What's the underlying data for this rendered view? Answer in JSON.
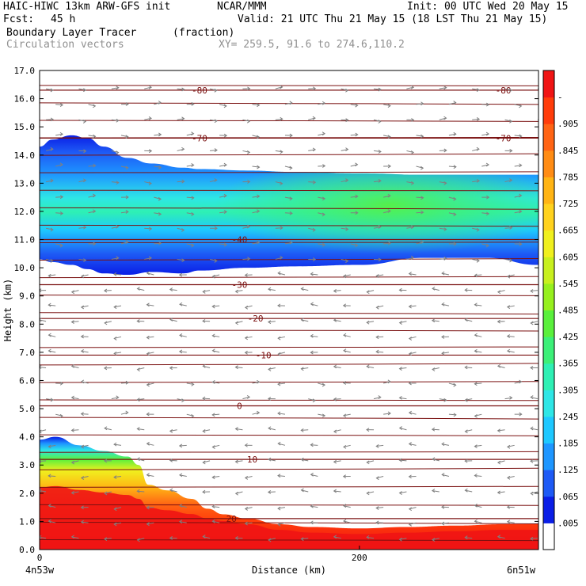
{
  "header": {
    "model": "HAIC-HIWC 13km ARW-GFS init",
    "center": "NCAR/MMM",
    "init": "Init: 00 UTC Wed 20 May 15",
    "fcst_label": "Fcst:",
    "fcst_value": "45 h",
    "valid": "Valid: 21 UTC Thu 21 May 15 (18 LST Thu 21 May 15)",
    "field": "Boundary Layer Tracer",
    "units": "(fraction)",
    "vectors": "Circulation vectors",
    "xsection": "XY= 259.5, 91.6 to 274.6,110.2"
  },
  "chart_data": {
    "type": "heatmap",
    "title": "Boundary Layer Tracer",
    "units": "(fraction)",
    "xlabel": "Distance (km)",
    "ylabel": "Height (km)",
    "xlim": [
      0,
      312
    ],
    "ylim": [
      0,
      17
    ],
    "x_ticks": [
      0,
      200
    ],
    "x_end_labels": [
      "4n53w",
      "6n51w"
    ],
    "y_ticks": [
      "0.0",
      "1.0",
      "2.0",
      "3.0",
      "4.0",
      "5.0",
      "6.0",
      "7.0",
      "8.0",
      "9.0",
      "10.0",
      "11.0",
      "12.0",
      "13.0",
      "14.0",
      "15.0",
      "16.0",
      "17.0"
    ],
    "colorbar": {
      "labels": [
        ".005",
        ".065",
        ".125",
        ".185",
        ".245",
        ".305",
        ".365",
        ".425",
        ".485",
        ".545",
        ".605",
        ".665",
        ".725",
        ".785",
        ".845",
        ".905",
        "-"
      ],
      "colors": [
        "#ffffff",
        "#0a1ee6",
        "#1e5af5",
        "#1e96ff",
        "#1ec8ff",
        "#2ee6e6",
        "#2ef0b4",
        "#3cf078",
        "#5af03c",
        "#96f01e",
        "#c8f01e",
        "#f0f01e",
        "#ffd21e",
        "#ffb414",
        "#ff8c14",
        "#ff6414",
        "#ff3c0a",
        "#f01414"
      ]
    },
    "temperature_contours": [
      {
        "label": "-80",
        "height_km": 16.3
      },
      {
        "label": "-70",
        "height_km": 14.6
      },
      {
        "label": "-40",
        "height_km": 11.0
      },
      {
        "label": "-30",
        "height_km": 9.4
      },
      {
        "label": "-20",
        "height_km": 8.2
      },
      {
        "label": "-10",
        "height_km": 6.9
      },
      {
        "label": "0",
        "height_km": 5.1
      },
      {
        "label": "10",
        "height_km": 3.2
      },
      {
        "label": "20",
        "height_km": 1.1
      }
    ],
    "upper_layer_profile": {
      "x": [
        0,
        8,
        20,
        30,
        40,
        55,
        70,
        90,
        100,
        130,
        160,
        200,
        240,
        280,
        312
      ],
      "top_km": [
        14.3,
        14.55,
        14.7,
        14.6,
        14.3,
        13.9,
        13.7,
        13.55,
        13.5,
        13.45,
        13.4,
        13.35,
        13.3,
        13.3,
        13.3
      ],
      "bottom_km": [
        10.3,
        10.2,
        10.1,
        9.95,
        9.8,
        9.75,
        9.85,
        9.8,
        9.9,
        10.0,
        10.05,
        10.1,
        10.35,
        10.35,
        10.1
      ]
    },
    "lower_layer_profile": {
      "x": [
        0,
        10,
        25,
        40,
        55,
        62,
        68,
        80,
        95,
        105,
        115,
        130,
        150,
        170,
        200,
        230,
        260,
        290,
        312
      ],
      "top_km": [
        3.9,
        4.0,
        3.7,
        3.5,
        3.3,
        3.0,
        2.3,
        2.1,
        1.8,
        1.45,
        1.25,
        1.1,
        0.9,
        0.8,
        0.75,
        0.8,
        0.85,
        0.9,
        0.9
      ]
    }
  }
}
